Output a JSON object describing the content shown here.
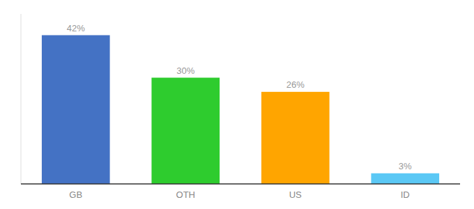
{
  "chart_data": {
    "type": "bar",
    "categories": [
      "GB",
      "OTH",
      "US",
      "ID"
    ],
    "values": [
      42,
      30,
      26,
      3
    ],
    "value_labels": [
      "42%",
      "30%",
      "26%",
      "3%"
    ],
    "colors": [
      "#4472c4",
      "#2ecc2e",
      "#ffa500",
      "#5bc8f5"
    ],
    "ylim": [
      0,
      48
    ],
    "data_labels": true,
    "tick_labels": "x"
  }
}
